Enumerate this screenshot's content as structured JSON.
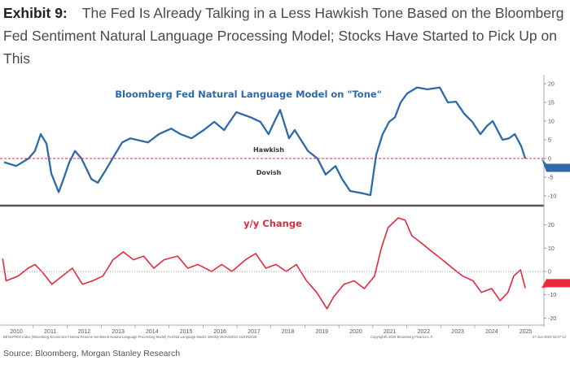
{
  "title": {
    "exhibit": "Exhibit 9:",
    "text": "The Fed Is Already Talking in a Less Hawkish Tone Based on the Bloomberg Fed Sentiment Natural Language Processing Model; Stocks Have Started to Pick Up on This"
  },
  "source": "Source: Bloomberg, Morgan Stanley Research",
  "footer": {
    "left": "BENLPFED Index (Bloomberg Economics Federal Reserve Sentiment Natural Language Processing Model) Fed Nat Language Model. Weekly 29JAN2010-23JUN2025",
    "center": "Copyright© 2025 Bloomberg Finance L.P.",
    "right": "27-Jun-2025 15:07:13"
  },
  "colors": {
    "tone": "#2e6aa8",
    "change": "#e8283c",
    "divider": "#555555"
  },
  "chart_data": [
    {
      "type": "line",
      "title": "Bloomberg Fed Natural Language Model on \"Tone\"",
      "annotations": [
        "Hawkish",
        "Dovish"
      ],
      "ylim": [
        -12,
        22
      ],
      "yticks": [
        -10,
        -5,
        0,
        5,
        10,
        15,
        20
      ],
      "reference_line": 0,
      "last_value_label": "-0.05",
      "x": [
        2010.14,
        2010.5,
        2010.86,
        2011.05,
        2011.22,
        2011.39,
        2011.53,
        2011.75,
        2011.89,
        2012.06,
        2012.23,
        2012.42,
        2012.71,
        2012.9,
        2013.14,
        2013.4,
        2013.62,
        2013.86,
        2014.38,
        2014.7,
        2015.06,
        2015.34,
        2015.66,
        2016.02,
        2016.33,
        2016.62,
        2016.98,
        2017.41,
        2017.69,
        2017.93,
        2018.1,
        2018.27,
        2018.53,
        2018.7,
        2019.09,
        2019.37,
        2019.61,
        2019.9,
        2020.09,
        2020.33,
        2020.69,
        2020.93,
        2021.1,
        2021.29,
        2021.48,
        2021.65,
        2021.82,
        2022.01,
        2022.3,
        2022.61,
        2022.97,
        2023.21,
        2023.45,
        2023.69,
        2023.93,
        2024.17,
        2024.36,
        2024.53,
        2024.82,
        2025.01,
        2025.18,
        2025.37,
        2025.49
      ],
      "values": [
        -1,
        -2,
        0,
        2,
        6.5,
        4,
        -4,
        -9,
        -5.5,
        -1,
        2,
        0,
        -5.5,
        -6.5,
        -3,
        1,
        4.3,
        5.4,
        4.3,
        6.5,
        8,
        6.5,
        5.4,
        7.6,
        9.8,
        7.6,
        12.4,
        11,
        9.8,
        6.5,
        9.8,
        13,
        5.4,
        7.6,
        2,
        0,
        -4.3,
        -2,
        -5.4,
        -8.7,
        -9.3,
        -9.8,
        1,
        6.5,
        9.8,
        11,
        15,
        17.4,
        19,
        18.5,
        19,
        15,
        15.2,
        12,
        9.8,
        6.5,
        8.7,
        10,
        5,
        5.4,
        6.5,
        3.3,
        -0.05
      ]
    },
    {
      "type": "line",
      "title": "y/y Change",
      "ylim": [
        -23,
        27
      ],
      "yticks": [
        -20,
        -10,
        0,
        10,
        20
      ],
      "reference_line": 0,
      "last_value_label": "-7.1421",
      "x": [
        2010.1,
        2010.2,
        2010.55,
        2010.85,
        2011.05,
        2011.25,
        2011.55,
        2011.85,
        2012.15,
        2012.45,
        2012.75,
        2013.05,
        2013.35,
        2013.65,
        2013.95,
        2014.25,
        2014.55,
        2014.85,
        2015.25,
        2015.55,
        2015.85,
        2016.25,
        2016.55,
        2016.85,
        2017.25,
        2017.55,
        2017.85,
        2018.15,
        2018.45,
        2018.75,
        2019.05,
        2019.35,
        2019.65,
        2019.85,
        2020.15,
        2020.45,
        2020.75,
        2021.05,
        2021.25,
        2021.45,
        2021.75,
        2021.95,
        2022.15,
        2022.45,
        2022.75,
        2023.05,
        2023.35,
        2023.65,
        2023.95,
        2024.2,
        2024.5,
        2024.75,
        2024.98,
        2025.15,
        2025.35,
        2025.49
      ],
      "values": [
        5.5,
        -4,
        -2,
        1.4,
        3,
        0,
        -5.5,
        -2,
        1.4,
        -5.5,
        -4,
        -2,
        5,
        8.4,
        5,
        6.6,
        1.4,
        5,
        6.6,
        1.4,
        3,
        0,
        3,
        0,
        5,
        7.7,
        1.4,
        3,
        0,
        3,
        -4,
        -9,
        -16,
        -10.8,
        -5.5,
        -4,
        -7.3,
        -2,
        10,
        18.8,
        23,
        22,
        15.3,
        12,
        8.4,
        5,
        1.4,
        -2,
        -4,
        -9,
        -7.3,
        -12.5,
        -9,
        -2,
        0.7,
        -7.14
      ]
    }
  ],
  "xaxis": {
    "ticks": [
      "2010",
      "2011",
      "2012",
      "2013",
      "2014",
      "2015",
      "2016",
      "2017",
      "2018",
      "2019",
      "2020",
      "2021",
      "2022",
      "2023",
      "2024",
      "2025"
    ]
  }
}
